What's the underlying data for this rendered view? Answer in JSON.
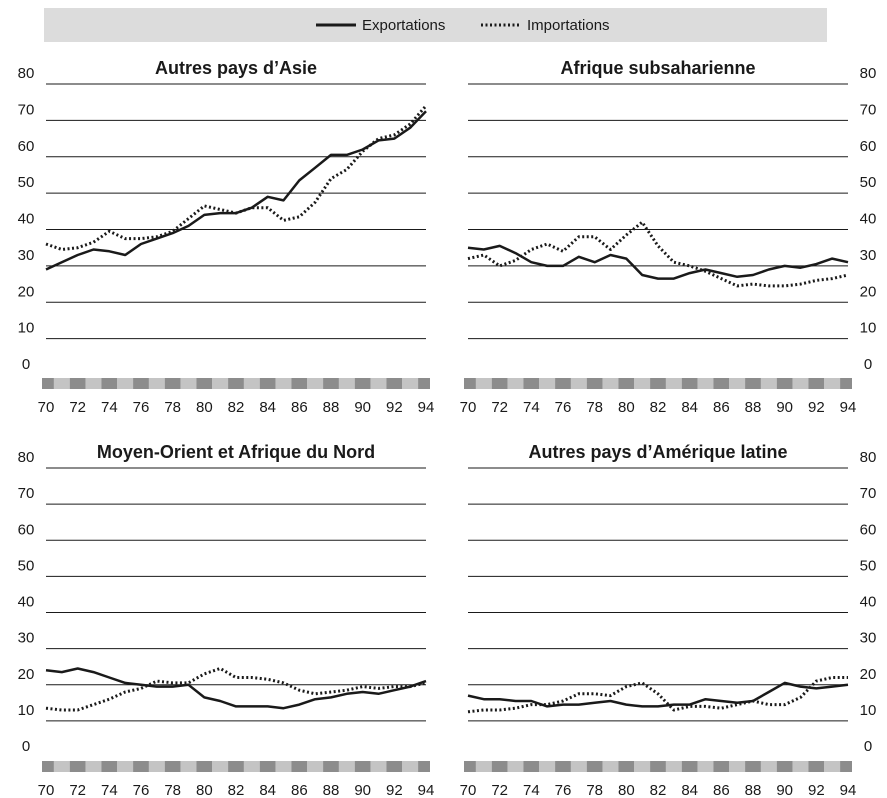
{
  "legend": {
    "exports": "Exportations",
    "imports": "Importations"
  },
  "colors": {
    "line": "#1a1a1a",
    "grid": "#1a1a1a",
    "band_dark": "#8c8c8c",
    "band_light": "#c4c4c4",
    "legend_bg": "#dcdcdc"
  },
  "chart_data": [
    {
      "type": "line",
      "title": "Autres pays d’Asie",
      "ylim": [
        0,
        80
      ],
      "yticks": [
        0,
        10,
        20,
        30,
        40,
        50,
        60,
        70,
        80
      ],
      "xlim": [
        70,
        94
      ],
      "xticks": [
        "70",
        "72",
        "74",
        "76",
        "78",
        "80",
        "82",
        "84",
        "86",
        "88",
        "90",
        "92",
        "94"
      ],
      "y_axis_side": "left",
      "grid": true,
      "x": [
        70,
        71,
        72,
        73,
        74,
        75,
        76,
        77,
        78,
        79,
        80,
        81,
        82,
        83,
        84,
        85,
        86,
        87,
        88,
        89,
        90,
        91,
        92,
        93,
        94
      ],
      "series": [
        {
          "name": "Exportations",
          "style": "solid",
          "values": [
            29,
            31,
            33,
            34.5,
            34,
            33,
            36,
            37.5,
            39,
            41,
            44,
            44.5,
            44.5,
            46,
            49,
            48,
            53.5,
            57,
            60.5,
            60.5,
            62,
            64.5,
            65,
            68,
            72.5
          ]
        },
        {
          "name": "Importations",
          "style": "dotted",
          "values": [
            36,
            34.5,
            35,
            36.5,
            39.5,
            37.5,
            37.5,
            38,
            39.5,
            43,
            46.5,
            45.5,
            44.5,
            46,
            46,
            42.5,
            43.5,
            47.5,
            54,
            56.5,
            61.5,
            65,
            66,
            69,
            74
          ]
        }
      ]
    },
    {
      "type": "line",
      "title": "Afrique subsaharienne",
      "ylim": [
        0,
        80
      ],
      "yticks": [
        0,
        10,
        20,
        30,
        40,
        50,
        60,
        70,
        80
      ],
      "xlim": [
        70,
        94
      ],
      "xticks": [
        "70",
        "72",
        "74",
        "76",
        "78",
        "80",
        "82",
        "84",
        "86",
        "88",
        "90",
        "92",
        "94"
      ],
      "y_axis_side": "right",
      "grid": true,
      "x": [
        70,
        71,
        72,
        73,
        74,
        75,
        76,
        77,
        78,
        79,
        80,
        81,
        82,
        83,
        84,
        85,
        86,
        87,
        88,
        89,
        90,
        91,
        92,
        93,
        94
      ],
      "series": [
        {
          "name": "Exportations",
          "style": "solid",
          "values": [
            35,
            34.5,
            35.5,
            33.5,
            31,
            30,
            30,
            32.5,
            31,
            33,
            32,
            27.5,
            26.5,
            26.5,
            28,
            29,
            28,
            27,
            27.5,
            29,
            30,
            29.5,
            30.5,
            32,
            31
          ]
        },
        {
          "name": "Importations",
          "style": "dotted",
          "values": [
            32,
            33,
            30,
            31.5,
            34.5,
            36,
            34,
            38,
            38,
            34.5,
            38.5,
            42,
            35.5,
            31,
            30,
            28.5,
            26.5,
            24.5,
            25,
            24.5,
            24.5,
            25,
            26,
            26.5,
            27.5
          ]
        }
      ]
    },
    {
      "type": "line",
      "title": "Moyen-Orient et Afrique du Nord",
      "ylim": [
        0,
        80
      ],
      "yticks": [
        0,
        10,
        20,
        30,
        40,
        50,
        60,
        70,
        80
      ],
      "xlim": [
        70,
        94
      ],
      "xticks": [
        "70",
        "72",
        "74",
        "76",
        "78",
        "80",
        "82",
        "84",
        "86",
        "88",
        "90",
        "92",
        "94"
      ],
      "y_axis_side": "left",
      "grid": true,
      "x": [
        70,
        71,
        72,
        73,
        74,
        75,
        76,
        77,
        78,
        79,
        80,
        81,
        82,
        83,
        84,
        85,
        86,
        87,
        88,
        89,
        90,
        91,
        92,
        93,
        94
      ],
      "series": [
        {
          "name": "Exportations",
          "style": "solid",
          "values": [
            24,
            23.5,
            24.5,
            23.5,
            22,
            20.5,
            20,
            19.5,
            19.5,
            20,
            16.5,
            15.5,
            14,
            14,
            14,
            13.5,
            14.5,
            16,
            16.5,
            17.5,
            18,
            17.5,
            18.5,
            19.5,
            21
          ]
        },
        {
          "name": "Importations",
          "style": "dotted",
          "values": [
            13.5,
            13,
            13,
            14.5,
            16,
            18,
            19,
            21,
            20.5,
            20.5,
            23,
            24.5,
            22,
            22,
            21.5,
            20.5,
            18.5,
            17.5,
            18,
            18.5,
            19.5,
            19,
            19.5,
            19.5,
            20.5
          ]
        }
      ]
    },
    {
      "type": "line",
      "title": "Autres pays d’Amérique latine",
      "ylim": [
        0,
        80
      ],
      "yticks": [
        0,
        10,
        20,
        30,
        40,
        50,
        60,
        70,
        80
      ],
      "xlim": [
        70,
        94
      ],
      "xticks": [
        "70",
        "72",
        "74",
        "76",
        "78",
        "80",
        "82",
        "84",
        "86",
        "88",
        "90",
        "92",
        "94"
      ],
      "y_axis_side": "right",
      "grid": true,
      "x": [
        70,
        71,
        72,
        73,
        74,
        75,
        76,
        77,
        78,
        79,
        80,
        81,
        82,
        83,
        84,
        85,
        86,
        87,
        88,
        89,
        90,
        91,
        92,
        93,
        94
      ],
      "series": [
        {
          "name": "Exportations",
          "style": "solid",
          "values": [
            17,
            16,
            16,
            15.5,
            15.5,
            14,
            14.5,
            14.5,
            15,
            15.5,
            14.5,
            14,
            14,
            14.5,
            14.5,
            16,
            15.5,
            15,
            15.5,
            18,
            20.5,
            19.5,
            19,
            19.5,
            20
          ]
        },
        {
          "name": "Importations",
          "style": "dotted",
          "values": [
            12.5,
            13,
            13,
            13.5,
            14.5,
            14.5,
            15.5,
            17.5,
            17.5,
            17,
            19.5,
            20.5,
            17.5,
            13,
            14,
            14,
            13.5,
            14.5,
            15.5,
            14.5,
            14.5,
            16.5,
            21,
            22,
            22
          ]
        }
      ]
    }
  ]
}
